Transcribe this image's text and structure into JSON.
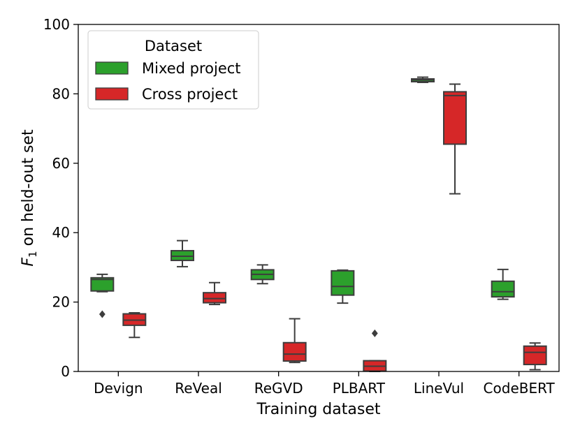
{
  "chart_data": {
    "type": "box",
    "title": "",
    "xlabel": "Training dataset",
    "ylabel_main": "F",
    "ylabel_sub": "1",
    "ylabel_rest": " on held-out set",
    "ylim": [
      0,
      100
    ],
    "yticks": [
      "0",
      "20",
      "40",
      "60",
      "80",
      "100"
    ],
    "ytick_values": [
      0,
      20,
      40,
      60,
      80,
      100
    ],
    "categories": [
      "Devign",
      "ReVeal",
      "ReGVD",
      "PLBART",
      "LineVul",
      "CodeBERT"
    ],
    "legend": {
      "title": "Dataset",
      "position": "top-left"
    },
    "series": [
      {
        "name": "Mixed project",
        "color": "#2ca02c",
        "boxes": [
          {
            "min": 23.0,
            "q1": 23.2,
            "median": 26.5,
            "q3": 27.0,
            "max": 28.0,
            "outliers": [
              16.5
            ]
          },
          {
            "min": 30.2,
            "q1": 32.0,
            "median": 33.2,
            "q3": 34.8,
            "max": 37.7,
            "outliers": []
          },
          {
            "min": 25.3,
            "q1": 26.5,
            "median": 28.0,
            "q3": 29.3,
            "max": 30.7,
            "outliers": []
          },
          {
            "min": 19.7,
            "q1": 22.0,
            "median": 24.5,
            "q3": 29.0,
            "max": 29.2,
            "outliers": []
          },
          {
            "min": 83.3,
            "q1": 83.5,
            "median": 84.0,
            "q3": 84.3,
            "max": 84.8,
            "outliers": []
          },
          {
            "min": 20.8,
            "q1": 21.5,
            "median": 23.0,
            "q3": 26.0,
            "max": 29.4,
            "outliers": []
          }
        ]
      },
      {
        "name": "Cross project",
        "color": "#d62728",
        "boxes": [
          {
            "min": 9.8,
            "q1": 13.3,
            "median": 14.8,
            "q3": 16.6,
            "max": 16.9,
            "outliers": []
          },
          {
            "min": 19.3,
            "q1": 19.8,
            "median": 21.0,
            "q3": 22.7,
            "max": 25.6,
            "outliers": []
          },
          {
            "min": 2.6,
            "q1": 3.0,
            "median": 5.0,
            "q3": 8.3,
            "max": 15.2,
            "outliers": []
          },
          {
            "min": 0.0,
            "q1": 0.1,
            "median": 1.5,
            "q3": 3.1,
            "max": 3.1,
            "outliers": [
              11.0
            ]
          },
          {
            "min": 51.2,
            "q1": 65.5,
            "median": 79.5,
            "q3": 80.6,
            "max": 82.8,
            "outliers": []
          },
          {
            "min": 0.5,
            "q1": 2.0,
            "median": 5.5,
            "q3": 7.3,
            "max": 8.2,
            "outliers": []
          }
        ]
      }
    ]
  }
}
